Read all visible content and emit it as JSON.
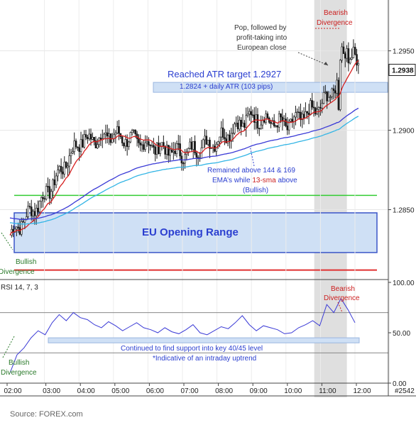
{
  "source": "Source: FOREX.com",
  "chart_data": [
    {
      "type": "candlestick",
      "panel": "price",
      "ylim": [
        1.2806,
        1.2982
      ],
      "y_ticks": [
        "1.2950",
        "1.2900",
        "1.2850"
      ],
      "last_price": "1.2938",
      "grid": true,
      "series": [
        {
          "name": "",
          "type": "ohlc",
          "x": [
            "02:00",
            "03:00",
            "04:00",
            "05:00",
            "06:00",
            "07:00",
            "08:00",
            "09:00",
            "10:00",
            "11:00",
            "12:00"
          ],
          "close": [
            1.2834,
            1.2858,
            1.2893,
            1.2897,
            1.2891,
            1.2885,
            1.2894,
            1.2909,
            1.2903,
            1.2915,
            1.2944
          ]
        },
        {
          "name": "13-sma",
          "color": "#d62020"
        },
        {
          "name": "144 EMA",
          "color": "#3a3ad6"
        },
        {
          "name": "169 EMA",
          "color": "#33b5e5"
        }
      ],
      "levels": [
        {
          "value": 1.2927,
          "color": "#5b8fd6"
        },
        {
          "value": 1.2859,
          "color": "#33cc33"
        },
        {
          "value": 1.2812,
          "color": "#e03030"
        }
      ],
      "zones": [
        {
          "from": 1.2823,
          "to": 1.2848,
          "label": "EU Opening Range"
        }
      ],
      "annotations": {
        "atr_title": "Reached ATR target 1.2927",
        "atr_sub": "1.2824 + daily ATR (103 pips)",
        "pop_1": "Pop, followed by",
        "pop_2": "profit-taking into",
        "pop_3": "European close",
        "bear_1": "Bearish",
        "bear_2": "Divergence",
        "ema_1": "Remained above 144 & 169",
        "ema_2a": "EMA’s while ",
        "ema_2b": "13-sma",
        "ema_2c": " above",
        "ema_3": "(Bullish)",
        "bull_1": "Bullish",
        "bull_2": "Divergence"
      }
    },
    {
      "type": "line",
      "panel": "rsi",
      "title": "RSI 14, 7, 3",
      "ylim": [
        0,
        100
      ],
      "y_ticks": [
        "100.00",
        "50.00",
        "0.00"
      ],
      "bands": [
        70,
        30
      ],
      "series": [
        {
          "name": "RSI",
          "color": "#3a3ad6",
          "values": [
            10,
            28,
            35,
            45,
            52,
            48,
            60,
            68,
            62,
            70,
            65,
            63,
            58,
            55,
            61,
            57,
            52,
            56,
            60,
            55,
            53,
            50,
            55,
            51,
            49,
            53,
            58,
            50,
            48,
            52,
            56,
            54,
            60,
            67,
            58,
            52,
            57,
            55,
            53,
            49,
            50,
            55,
            58,
            62,
            57,
            78,
            70,
            84,
            73,
            60
          ]
        }
      ],
      "support_zone": [
        40,
        45
      ],
      "annotations": {
        "support": "Continued to find support into key 40/45 level",
        "indicative": "*Indicative of an intraday uptrend",
        "bear_1": "Bearish",
        "bear_2": "Divergence",
        "bull_1": "Bullish",
        "bull_2": "Divergence"
      }
    }
  ],
  "x_axis": {
    "labels": [
      "02:00",
      "03:00",
      "04:00",
      "05:00",
      "06:00",
      "07:00",
      "08:00",
      "09:00",
      "10:00",
      "11:00",
      "12:00"
    ],
    "chart_id": "#2542"
  }
}
